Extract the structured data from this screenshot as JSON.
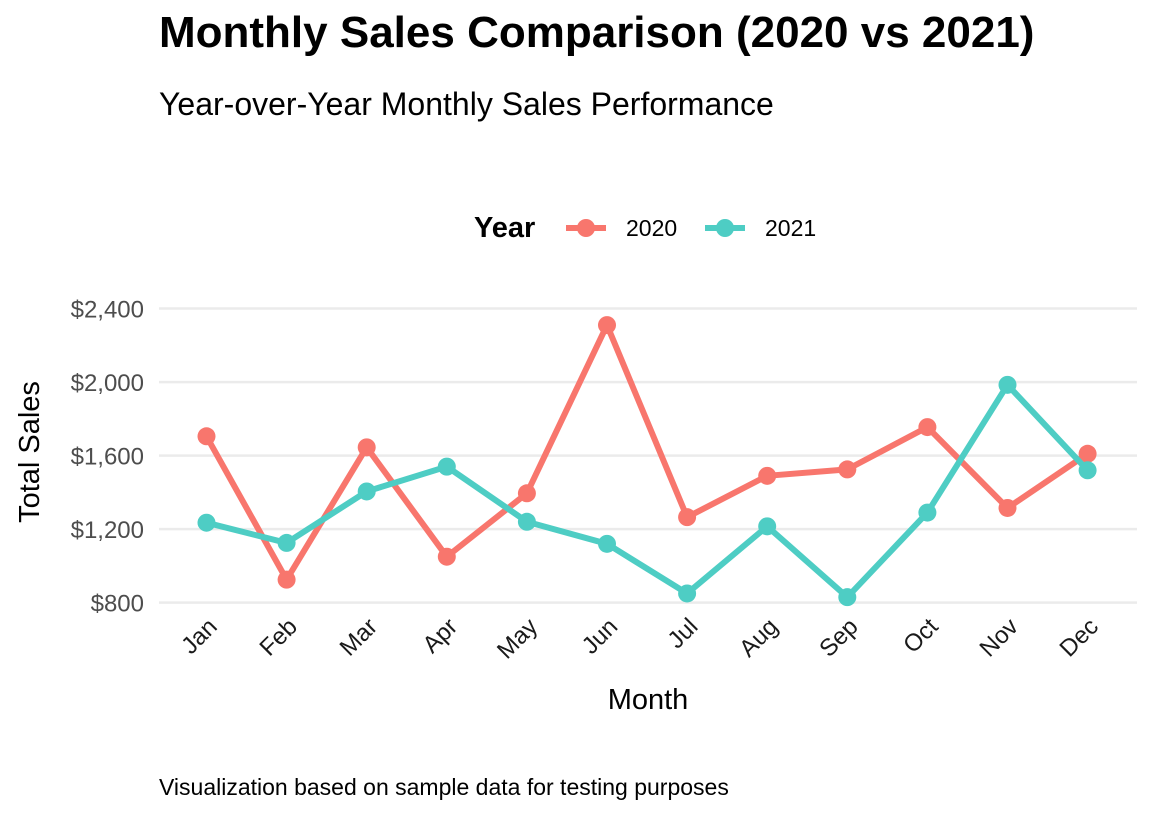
{
  "chart_data": {
    "type": "line",
    "title": "Monthly Sales Comparison (2020 vs 2021)",
    "subtitle": "Year-over-Year Monthly Sales Performance",
    "caption": "Visualization based on sample data for testing purposes",
    "xlabel": "Month",
    "ylabel": "Total Sales",
    "categories": [
      "Jan",
      "Feb",
      "Mar",
      "Apr",
      "May",
      "Jun",
      "Jul",
      "Aug",
      "Sep",
      "Oct",
      "Nov",
      "Dec"
    ],
    "ylim": [
      760,
      2490
    ],
    "y_ticks": [
      {
        "value": 800,
        "label": "$800"
      },
      {
        "value": 1200,
        "label": "$1,200"
      },
      {
        "value": 1600,
        "label": "$1,600"
      },
      {
        "value": 2000,
        "label": "$2,000"
      },
      {
        "value": 2400,
        "label": "$2,400"
      }
    ],
    "grid": true,
    "legend": {
      "title": "Year",
      "position": "top"
    },
    "series": [
      {
        "name": "2020",
        "color": "#F8766D",
        "values": [
          1705,
          925,
          1645,
          1050,
          1395,
          2310,
          1265,
          1490,
          1525,
          1755,
          1315,
          1610
        ]
      },
      {
        "name": "2021",
        "color": "#4ECDC4",
        "values": [
          1235,
          1125,
          1405,
          1540,
          1240,
          1120,
          850,
          1215,
          830,
          1290,
          1985,
          1520
        ]
      }
    ]
  }
}
